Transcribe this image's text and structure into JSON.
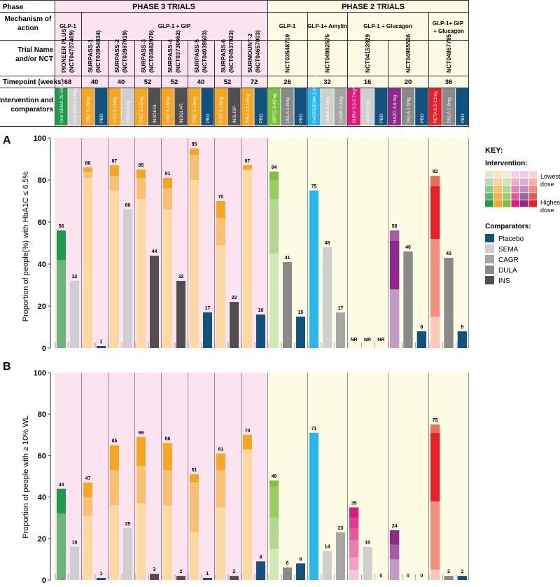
{
  "header": {
    "phase_label": "Phase",
    "mechanism_label": "Mechanism of action",
    "trial_label": "Trial Name and/or NCT",
    "timepoint_label": "Timepoint (weeks)",
    "intervention_label": "Intervention and comparators",
    "phase3_title": "PHASE 3 TRIALS",
    "phase2_title": "PHASE 2 TRIALS"
  },
  "mechanisms": [
    {
      "label": "GLP-1",
      "phase": 3
    },
    {
      "label": "GLP-1 + GIP",
      "phase": 3
    },
    {
      "label": "GLP-1",
      "phase": 2
    },
    {
      "label": "GLP-1+ Amylin",
      "phase": 2
    },
    {
      "label": "GLP-1 + Glucagon",
      "phase": 2
    },
    {
      "label": "GLP-1+ GIP + Glucagon",
      "phase": 2
    }
  ],
  "colors": {
    "phase3_bg": "#fbe4f0",
    "phase2_bg": "#fdfbe4",
    "placebo": "#12527e",
    "sema": "#cfcfcf",
    "cagr": "#a6a6a6",
    "dula": "#8a8a8a",
    "ins": "#505050"
  },
  "trials": [
    {
      "name": "PIONEER PLUS",
      "nct": "(NCT04707469)",
      "timepoint": "68",
      "arms": [
        {
          "label": "Oral SEMA 25-50mg",
          "color": "#1f9a4c",
          "a": 56,
          "a_layers": [
            42,
            56
          ],
          "a_colors": [
            "#6ab47a",
            "#1f9a4c"
          ],
          "b": 44,
          "b_layers": [
            32,
            44
          ],
          "b_colors": [
            "#6ab47a",
            "#1f9a4c"
          ]
        },
        {
          "label": "Oral SEMA 14mg",
          "color": "#cfcfcf",
          "a": 32,
          "b": 16
        }
      ]
    },
    {
      "name": "SURPASS-1",
      "nct": "(NCT03954834)",
      "timepoint": "40",
      "arms": [
        {
          "label": "TIRZ 5-15mg",
          "color": "#f5a623",
          "a": 86,
          "a_layers": [
            81,
            84,
            86
          ],
          "a_colors": [
            "#fcd9a3",
            "#f8c072",
            "#f5a623"
          ],
          "b": 47,
          "b_layers": [
            31,
            40,
            47
          ],
          "b_colors": [
            "#fcd9a3",
            "#f8c072",
            "#f5a623"
          ]
        },
        {
          "label": "PBO",
          "color": "#12527e",
          "a": 1,
          "b": 1
        }
      ]
    },
    {
      "name": "SURPASS-2",
      "nct": "(NCT03987919)",
      "timepoint": "40",
      "arms": [
        {
          "label": "TIRZ 5-15mg",
          "color": "#f5a623",
          "a": 87,
          "a_layers": [
            75,
            82,
            87
          ],
          "a_colors": [
            "#fcd9a3",
            "#f8c072",
            "#f5a623"
          ],
          "b": 65,
          "b_layers": [
            36,
            53,
            65
          ],
          "b_colors": [
            "#fcd9a3",
            "#f8c072",
            "#f5a623"
          ]
        },
        {
          "label": "SEMA 1mg",
          "color": "#cfcfcf",
          "a": 66,
          "b": 25
        }
      ]
    },
    {
      "name": "SURPASS-3",
      "nct": "(NCT03882970)",
      "timepoint": "52",
      "arms": [
        {
          "label": "TIRZ 5-15mg",
          "color": "#f5a623",
          "a": 85,
          "a_layers": [
            71,
            81,
            85
          ],
          "a_colors": [
            "#fcd9a3",
            "#f8c072",
            "#f5a623"
          ],
          "b": 69,
          "b_layers": [
            37,
            55,
            69
          ],
          "b_colors": [
            "#fcd9a3",
            "#f8c072",
            "#f5a623"
          ]
        },
        {
          "label": "INSDEGL",
          "color": "#505050",
          "a": 44,
          "b": 3
        }
      ]
    },
    {
      "name": "SURPASS-4",
      "nct": "(NCT03730662)",
      "timepoint": "52",
      "arms": [
        {
          "label": "TIRZ 5-15mg",
          "color": "#f5a623",
          "a": 81,
          "a_layers": [
            66,
            76,
            81
          ],
          "a_colors": [
            "#fcd9a3",
            "#f8c072",
            "#f5a623"
          ],
          "b": 66,
          "b_layers": [
            36,
            53,
            66
          ],
          "b_colors": [
            "#fcd9a3",
            "#f8c072",
            "#f5a623"
          ]
        },
        {
          "label": "INSGLAR",
          "color": "#505050",
          "a": 32,
          "b": 2
        }
      ]
    },
    {
      "name": "SURPASS-5",
      "nct": "(NCT04039503)",
      "timepoint": "40",
      "arms": [
        {
          "label": "TIRZ 5-15mg",
          "color": "#f5a623",
          "a": 95,
          "a_layers": [
            80,
            92,
            95
          ],
          "a_colors": [
            "#fcd9a3",
            "#f8c072",
            "#f5a623"
          ],
          "b": 51,
          "b_layers": [
            23,
            47,
            51
          ],
          "b_colors": [
            "#fcd9a3",
            "#f8c072",
            "#f5a623"
          ]
        },
        {
          "label": "PBO",
          "color": "#12527e",
          "a": 17,
          "b": 1
        }
      ]
    },
    {
      "name": "SURPASS-6",
      "nct": "(NCT04537923)",
      "timepoint": "52",
      "arms": [
        {
          "label": "TIRZ 5-15mg",
          "color": "#f5a623",
          "a": 70,
          "a_layers": [
            49,
            62,
            70
          ],
          "a_colors": [
            "#fcd9a3",
            "#f8c072",
            "#f5a623"
          ],
          "b": 61,
          "b_layers": [
            35,
            53,
            61
          ],
          "b_colors": [
            "#fcd9a3",
            "#f8c072",
            "#f5a623"
          ]
        },
        {
          "label": "INSLISP",
          "color": "#505050",
          "a": 22,
          "b": 2
        }
      ]
    },
    {
      "name": "SURMOUNT-2",
      "nct": "(NCT04657003)",
      "timepoint": "72",
      "arms": [
        {
          "label": "TIRZ 10-15mg",
          "color": "#f5a623",
          "a": 87,
          "a_layers": [
            85,
            87
          ],
          "a_colors": [
            "#fcd9a3",
            "#f5a623"
          ],
          "b": 70,
          "b_layers": [
            63,
            70
          ],
          "b_colors": [
            "#fcd9a3",
            "#f5a623"
          ]
        },
        {
          "label": "PBO",
          "color": "#12527e",
          "a": 16,
          "b": 9
        }
      ]
    },
    {
      "name": "NCT03548719",
      "nct": "",
      "timepoint": "26",
      "arms": [
        {
          "label": "ORFO 3-45mg",
          "color": "#7cc242",
          "a": 84,
          "a_layers": [
            45,
            71,
            80,
            84
          ],
          "a_colors": [
            "#d2e8b9",
            "#b3d890",
            "#98cd66",
            "#7cc242"
          ],
          "b": 48,
          "b_layers": [
            15,
            30,
            45,
            48
          ],
          "b_colors": [
            "#d2e8b9",
            "#b3d890",
            "#98cd66",
            "#7cc242"
          ]
        },
        {
          "label": "DULA 1.5mg",
          "color": "#8a8a8a",
          "a": 41,
          "b": 6
        },
        {
          "label": "PBO",
          "color": "#12527e",
          "a": 15,
          "b": 8
        }
      ]
    },
    {
      "name": "NCT04982575",
      "nct": "",
      "timepoint": "32",
      "arms": [
        {
          "label": "CAGRISEMA 2.4/2.4mg",
          "color": "#29b6e8",
          "a": 75,
          "b": 71
        },
        {
          "label": "SEMA 2.4mg",
          "color": "#cfcfcf",
          "a": 48,
          "b": 14
        },
        {
          "label": "CAGR 2.4mg",
          "color": "#a6a6a6",
          "a": 17,
          "b": 23
        }
      ]
    },
    {
      "name": "NCT04153929",
      "nct": "",
      "timepoint": "16",
      "arms": [
        {
          "label": "SURV 0.3-2.7mg*",
          "color": "#e0197d",
          "a_text": "NR",
          "b": 35,
          "b_layers": [
            5,
            11,
            19,
            25,
            30,
            35
          ],
          "b_colors": [
            "#f7c4dd",
            "#f2a0c8",
            "#ec7cb2",
            "#e6589c",
            "#e33b8c",
            "#e0197d"
          ]
        },
        {
          "label": "SEMA 1mg",
          "color": "#cfcfcf",
          "a_text": "NR",
          "b": 16
        },
        {
          "label": "PBO",
          "color": "#12527e",
          "a_text": "NR",
          "b": 0
        }
      ]
    },
    {
      "name": "NCT04965506",
      "nct": "",
      "timepoint": "20",
      "arms": [
        {
          "label": "MAZD 3-6 mg",
          "color": "#8e2a8e",
          "a": 56,
          "a_layers": [
            28,
            51,
            56
          ],
          "a_colors": [
            "#c39bc6",
            "#8e2a8e",
            "#a95ba9"
          ],
          "b": 24,
          "b_layers": [
            10,
            17,
            24
          ],
          "b_colors": [
            "#c39bc6",
            "#a95ba9",
            "#8e2a8e"
          ]
        },
        {
          "label": "DULA 1.5mg",
          "color": "#8a8a8a",
          "a": 46,
          "b": 0
        },
        {
          "label": "PBO",
          "color": "#12527e",
          "a": 8,
          "b": 0
        }
      ]
    },
    {
      "name": "NCT04867785",
      "nct": "",
      "timepoint": "36",
      "arms": [
        {
          "label": "RETA 0.5-12mg",
          "color": "#e8202c",
          "a": 82,
          "a_layers": [
            15,
            52,
            77,
            82
          ],
          "a_colors": [
            "#f9c9bd",
            "#f2907e",
            "#e8202c",
            "#ee6a5a"
          ],
          "b": 75,
          "b_layers": [
            5,
            38,
            71,
            75
          ],
          "b_colors": [
            "#f9c9bd",
            "#f2907e",
            "#e8202c",
            "#ee6a5a"
          ]
        },
        {
          "label": "DULA 1.5mg",
          "color": "#8a8a8a",
          "a": 43,
          "b": 2
        },
        {
          "label": "PBO",
          "color": "#12527e",
          "a": 8,
          "b": 2
        }
      ]
    }
  ],
  "chart_data": [
    {
      "type": "bar",
      "panel": "A",
      "title": "",
      "ylabel": "Proportion of people(%) with HbA1C ≤ 6.5%",
      "xlabel": "",
      "ylim": [
        0,
        100
      ],
      "yticks": [
        0,
        20,
        40,
        60,
        80,
        100
      ],
      "categories": [
        "Oral SEMA 25-50mg",
        "Oral SEMA 14mg",
        "TIRZ 5-15mg",
        "PBO",
        "TIRZ 5-15mg",
        "SEMA 1mg",
        "TIRZ 5-15mg",
        "INSDEGL",
        "TIRZ 5-15mg",
        "INSGLAR",
        "TIRZ 5-15mg",
        "PBO",
        "TIRZ 5-15mg",
        "INSLISP",
        "TIRZ 10-15mg",
        "PBO",
        "ORFO 3-45mg",
        "DULA 1.5mg",
        "PBO",
        "CAGRISEMA 2.4/2.4mg",
        "SEMA 2.4mg",
        "CAGR 2.4mg",
        "SURV 0.3-2.7mg*",
        "SEMA 1mg",
        "PBO",
        "MAZD 3-6 mg",
        "DULA 1.5mg",
        "PBO",
        "RETA 0.5-12mg",
        "DULA 1.5mg",
        "PBO"
      ],
      "values": [
        56,
        32,
        86,
        1,
        87,
        66,
        85,
        44,
        81,
        32,
        95,
        17,
        70,
        22,
        87,
        16,
        84,
        41,
        15,
        75,
        48,
        17,
        "NR",
        "NR",
        "NR",
        56,
        46,
        8,
        82,
        43,
        8
      ]
    },
    {
      "type": "bar",
      "panel": "B",
      "title": "",
      "ylabel": "Proportion of people with ≥ 10% WL",
      "xlabel": "",
      "ylim": [
        0,
        100
      ],
      "yticks": [
        0,
        20,
        40,
        60,
        80,
        100
      ],
      "categories": [
        "Oral SEMA 25-50mg",
        "Oral SEMA 14mg",
        "TIRZ 5-15mg",
        "PBO",
        "TIRZ 5-15mg",
        "SEMA 1mg",
        "TIRZ 5-15mg",
        "INSDEGL",
        "TIRZ 5-15mg",
        "INSGLAR",
        "TIRZ 5-15mg",
        "PBO",
        "TIRZ 5-15mg",
        "INSLISP",
        "TIRZ 10-15mg",
        "PBO",
        "ORFO 3-45mg",
        "DULA 1.5mg",
        "PBO",
        "CAGRISEMA 2.4/2.4mg",
        "SEMA 2.4mg",
        "CAGR 2.4mg",
        "SURV 0.3-2.7mg*",
        "SEMA 1mg",
        "PBO",
        "MAZD 3-6 mg",
        "DULA 1.5mg",
        "PBO",
        "RETA 0.5-12mg",
        "DULA 1.5mg",
        "PBO"
      ],
      "values": [
        44,
        16,
        47,
        1,
        65,
        25,
        69,
        3,
        66,
        2,
        51,
        1,
        61,
        2,
        70,
        9,
        48,
        6,
        8,
        71,
        14,
        23,
        35,
        16,
        0,
        24,
        0,
        0,
        75,
        2,
        2
      ]
    }
  ],
  "panels": {
    "a_letter": "A",
    "b_letter": "B",
    "a_ylabel": "Proportion of people(%) with HbA1C ≤ 6.5%",
    "b_ylabel": "Proportion of people with ≥ 10% WL",
    "ticks": [
      "0",
      "20",
      "40",
      "60",
      "80",
      "100"
    ]
  },
  "key": {
    "title": "KEY:",
    "intervention_title": "Intervention:",
    "lowest": "Lowest dose",
    "highest": "Highest dose",
    "comparators_title": "Comparators:",
    "swatch_rows": [
      [
        "#d7ecd5",
        "#fde3c0",
        "#e5f0d4",
        "#f6d0e2",
        "#e6d2e6",
        "#fad4cf"
      ],
      [
        "#b5dcb2",
        "#fcd19a",
        "#d0e5b3",
        "#f0abcb",
        "#d4b1d4",
        "#f5b0a8"
      ],
      [
        "#8ccb8c",
        "#f9bf73",
        "#b6d88e",
        "#e980b2",
        "#bf8cbf",
        "#ef8a7f"
      ],
      [
        "#5eb56c",
        "#f7ae4a",
        "#9dcd69",
        "#e5579c",
        "#a45fa4",
        "#ea5a52"
      ],
      [
        "#1f9a4c",
        "#f5a623",
        "#7cc242",
        "#e0197d",
        "#8e2a8e",
        "#e8202c"
      ]
    ],
    "comparators": [
      {
        "label": "Placebo",
        "color": "#12527e"
      },
      {
        "label": "SEMA",
        "color": "#cfcfcf"
      },
      {
        "label": "CAGR",
        "color": "#a6a6a6"
      },
      {
        "label": "DULA",
        "color": "#8a8a8a"
      },
      {
        "label": "INS",
        "color": "#505050"
      }
    ]
  }
}
